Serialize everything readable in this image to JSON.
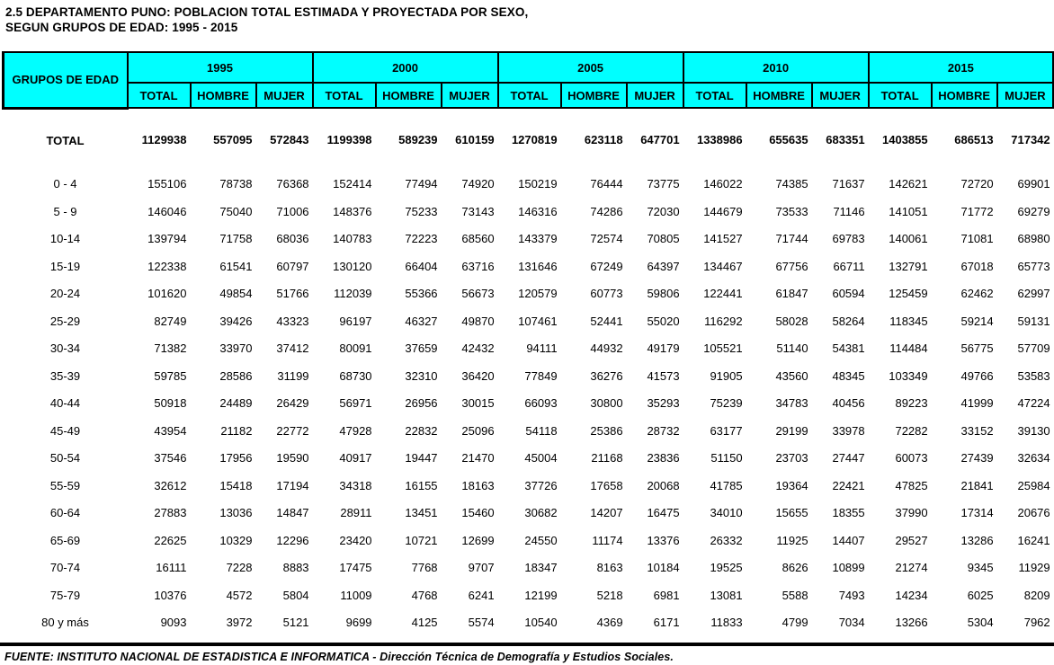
{
  "title": {
    "line1": "2.5  DEPARTAMENTO PUNO: POBLACION TOTAL ESTIMADA Y PROYECTADA POR SEXO,",
    "line2": "SEGUN GRUPOS DE EDAD: 1995 - 2015"
  },
  "colors": {
    "header_bg": "#00FFFF",
    "border": "#000000",
    "text": "#000000"
  },
  "table": {
    "corner_header": "GRUPOS DE EDAD",
    "years": [
      "1995",
      "2000",
      "2005",
      "2010",
      "2015"
    ],
    "sub_headers": [
      "TOTAL",
      "HOMBRE",
      "MUJER"
    ],
    "total_row": {
      "label": "TOTAL",
      "values": [
        "1129938",
        "557095",
        "572843",
        "1199398",
        "589239",
        "610159",
        "1270819",
        "623118",
        "647701",
        "1338986",
        "655635",
        "683351",
        "1403855",
        "686513",
        "717342"
      ]
    },
    "rows": [
      {
        "label": "0 - 4",
        "values": [
          "155106",
          "78738",
          "76368",
          "152414",
          "77494",
          "74920",
          "150219",
          "76444",
          "73775",
          "146022",
          "74385",
          "71637",
          "142621",
          "72720",
          "69901"
        ]
      },
      {
        "label": "5 - 9",
        "values": [
          "146046",
          "75040",
          "71006",
          "148376",
          "75233",
          "73143",
          "146316",
          "74286",
          "72030",
          "144679",
          "73533",
          "71146",
          "141051",
          "71772",
          "69279"
        ]
      },
      {
        "label": "10-14",
        "values": [
          "139794",
          "71758",
          "68036",
          "140783",
          "72223",
          "68560",
          "143379",
          "72574",
          "70805",
          "141527",
          "71744",
          "69783",
          "140061",
          "71081",
          "68980"
        ]
      },
      {
        "label": "15-19",
        "values": [
          "122338",
          "61541",
          "60797",
          "130120",
          "66404",
          "63716",
          "131646",
          "67249",
          "64397",
          "134467",
          "67756",
          "66711",
          "132791",
          "67018",
          "65773"
        ]
      },
      {
        "label": "20-24",
        "values": [
          "101620",
          "49854",
          "51766",
          "112039",
          "55366",
          "56673",
          "120579",
          "60773",
          "59806",
          "122441",
          "61847",
          "60594",
          "125459",
          "62462",
          "62997"
        ]
      },
      {
        "label": "25-29",
        "values": [
          "82749",
          "39426",
          "43323",
          "96197",
          "46327",
          "49870",
          "107461",
          "52441",
          "55020",
          "116292",
          "58028",
          "58264",
          "118345",
          "59214",
          "59131"
        ]
      },
      {
        "label": "30-34",
        "values": [
          "71382",
          "33970",
          "37412",
          "80091",
          "37659",
          "42432",
          "94111",
          "44932",
          "49179",
          "105521",
          "51140",
          "54381",
          "114484",
          "56775",
          "57709"
        ]
      },
      {
        "label": "35-39",
        "values": [
          "59785",
          "28586",
          "31199",
          "68730",
          "32310",
          "36420",
          "77849",
          "36276",
          "41573",
          "91905",
          "43560",
          "48345",
          "103349",
          "49766",
          "53583"
        ]
      },
      {
        "label": "40-44",
        "values": [
          "50918",
          "24489",
          "26429",
          "56971",
          "26956",
          "30015",
          "66093",
          "30800",
          "35293",
          "75239",
          "34783",
          "40456",
          "89223",
          "41999",
          "47224"
        ]
      },
      {
        "label": "45-49",
        "values": [
          "43954",
          "21182",
          "22772",
          "47928",
          "22832",
          "25096",
          "54118",
          "25386",
          "28732",
          "63177",
          "29199",
          "33978",
          "72282",
          "33152",
          "39130"
        ]
      },
      {
        "label": "50-54",
        "values": [
          "37546",
          "17956",
          "19590",
          "40917",
          "19447",
          "21470",
          "45004",
          "21168",
          "23836",
          "51150",
          "23703",
          "27447",
          "60073",
          "27439",
          "32634"
        ]
      },
      {
        "label": "55-59",
        "values": [
          "32612",
          "15418",
          "17194",
          "34318",
          "16155",
          "18163",
          "37726",
          "17658",
          "20068",
          "41785",
          "19364",
          "22421",
          "47825",
          "21841",
          "25984"
        ]
      },
      {
        "label": "60-64",
        "values": [
          "27883",
          "13036",
          "14847",
          "28911",
          "13451",
          "15460",
          "30682",
          "14207",
          "16475",
          "34010",
          "15655",
          "18355",
          "37990",
          "17314",
          "20676"
        ]
      },
      {
        "label": "65-69",
        "values": [
          "22625",
          "10329",
          "12296",
          "23420",
          "10721",
          "12699",
          "24550",
          "11174",
          "13376",
          "26332",
          "11925",
          "14407",
          "29527",
          "13286",
          "16241"
        ]
      },
      {
        "label": "70-74",
        "values": [
          "16111",
          "7228",
          "8883",
          "17475",
          "7768",
          "9707",
          "18347",
          "8163",
          "10184",
          "19525",
          "8626",
          "10899",
          "21274",
          "9345",
          "11929"
        ]
      },
      {
        "label": "75-79",
        "values": [
          "10376",
          "4572",
          "5804",
          "11009",
          "4768",
          "6241",
          "12199",
          "5218",
          "6981",
          "13081",
          "5588",
          "7493",
          "14234",
          "6025",
          "8209"
        ]
      },
      {
        "label": "80 y más",
        "values": [
          "9093",
          "3972",
          "5121",
          "9699",
          "4125",
          "5574",
          "10540",
          "4369",
          "6171",
          "11833",
          "4799",
          "7034",
          "13266",
          "5304",
          "7962"
        ]
      }
    ]
  },
  "footer": {
    "source": "FUENTE: INSTITUTO NACIONAL DE ESTADISTICA E INFORMATICA - Dirección Técnica de Demografía y Estudios Sociales."
  }
}
